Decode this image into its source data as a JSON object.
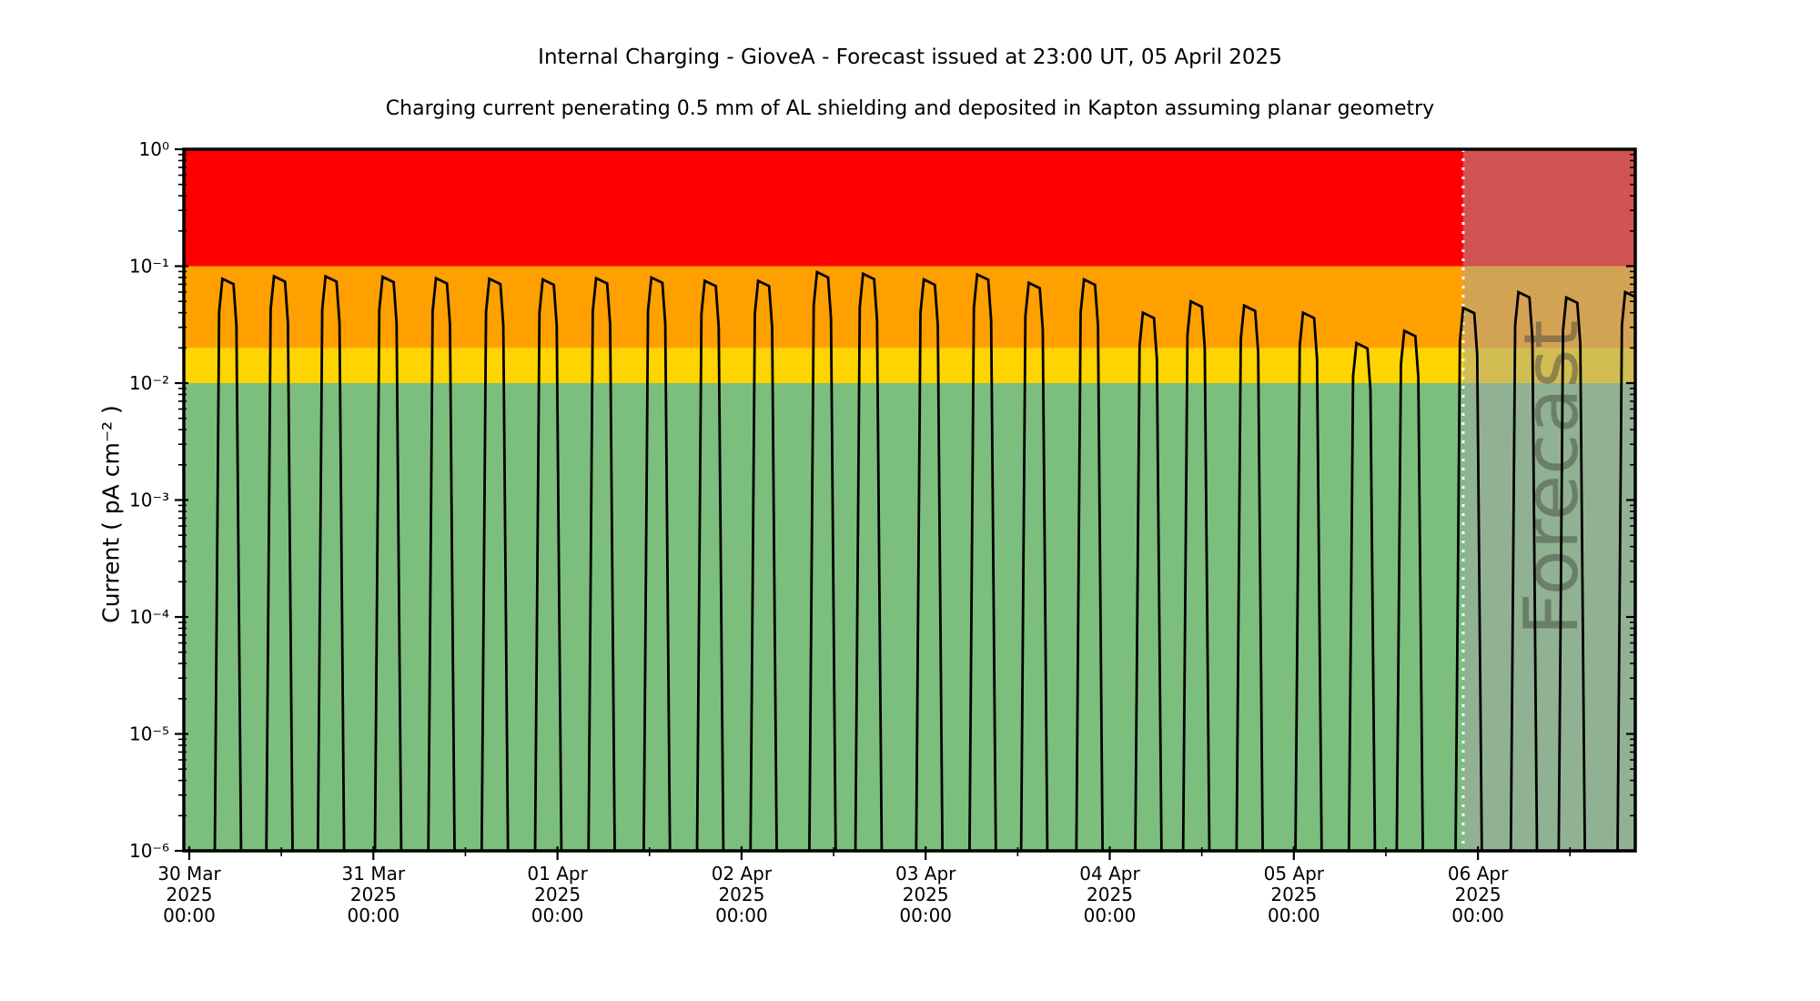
{
  "chart_data": {
    "type": "line",
    "title": "Internal Charging - GioveA - Forecast issued at 23:00 UT, 05 April 2025",
    "subtitle": "Charging current penerating 0.5 mm of AL shielding and deposited in Kapton assuming planar geometry",
    "ylabel": "Current ( pA cm⁻² )",
    "yscale": "log",
    "ylim": [
      1e-06,
      1
    ],
    "y_ticks": [
      {
        "value": 1,
        "label": "10⁰"
      },
      {
        "value": 0.1,
        "label": "10⁻¹"
      },
      {
        "value": 0.01,
        "label": "10⁻²"
      },
      {
        "value": 0.001,
        "label": "10⁻³"
      },
      {
        "value": 0.0001,
        "label": "10⁻⁴"
      },
      {
        "value": 1e-05,
        "label": "10⁻⁵"
      },
      {
        "value": 1e-06,
        "label": "10⁻⁶"
      }
    ],
    "x_unit": "days since 30 Mar 2025 00:00 UT",
    "xlim": [
      -0.03,
      7.855
    ],
    "x_minor_interval_days": 0.5,
    "x_ticks": [
      {
        "day": 0,
        "lines": [
          "30 Mar",
          "2025",
          "00:00"
        ]
      },
      {
        "day": 1,
        "lines": [
          "31 Mar",
          "2025",
          "00:00"
        ]
      },
      {
        "day": 2,
        "lines": [
          "01 Apr",
          "2025",
          "00:00"
        ]
      },
      {
        "day": 3,
        "lines": [
          "02 Apr",
          "2025",
          "00:00"
        ]
      },
      {
        "day": 4,
        "lines": [
          "03 Apr",
          "2025",
          "00:00"
        ]
      },
      {
        "day": 5,
        "lines": [
          "04 Apr",
          "2025",
          "00:00"
        ]
      },
      {
        "day": 6,
        "lines": [
          "05 Apr",
          "2025",
          "00:00"
        ]
      },
      {
        "day": 7,
        "lines": [
          "06 Apr",
          "2025",
          "00:00"
        ]
      }
    ],
    "thresholds": {
      "green_below": 0.01,
      "yellow_to": 0.02,
      "orange_to": 0.1,
      "red_to": 1
    },
    "bands": [
      {
        "name": "green",
        "range": [
          1e-06,
          0.01
        ],
        "color": "#7CBE7E"
      },
      {
        "name": "yellow",
        "range": [
          0.01,
          0.02
        ],
        "color": "#FFD400"
      },
      {
        "name": "orange",
        "range": [
          0.02,
          0.1
        ],
        "color": "#FFA000"
      },
      {
        "name": "red",
        "range": [
          0.1,
          1
        ],
        "color": "#FF0000"
      }
    ],
    "forecast": {
      "start_day": 6.92,
      "end_day": 7.855,
      "label": "Forecast",
      "overlay_color": "rgba(165,165,165,0.5)",
      "divider_color": "#FFFFFF",
      "divider_style": "dotted",
      "label_color": "#3f3f3f",
      "label_opacity": 0.45
    },
    "series": [
      {
        "name": "internal charging current",
        "color": "#000000",
        "spike_shape": {
          "half_base_days": 0.075,
          "half_top_days": 0.03,
          "rise_shoulder_frac": 0.52,
          "fall_shoulder_frac": 0.4,
          "off_scale_floor": 2e-07
        },
        "peaks": [
          [
            0.21,
            0.078
          ],
          [
            0.49,
            0.082
          ],
          [
            0.77,
            0.082
          ],
          [
            1.08,
            0.081
          ],
          [
            1.37,
            0.079
          ],
          [
            1.66,
            0.078
          ],
          [
            1.95,
            0.077
          ],
          [
            2.24,
            0.079
          ],
          [
            2.54,
            0.08
          ],
          [
            2.83,
            0.075
          ],
          [
            3.12,
            0.075
          ],
          [
            3.44,
            0.089
          ],
          [
            3.69,
            0.086
          ],
          [
            4.02,
            0.077
          ],
          [
            4.31,
            0.085
          ],
          [
            4.59,
            0.072
          ],
          [
            4.89,
            0.077
          ],
          [
            5.21,
            0.04
          ],
          [
            5.47,
            0.05
          ],
          [
            5.76,
            0.046
          ],
          [
            6.08,
            0.04
          ],
          [
            6.37,
            0.022
          ],
          [
            6.63,
            0.028
          ],
          [
            6.95,
            0.044
          ],
          [
            7.25,
            0.06
          ],
          [
            7.51,
            0.054
          ],
          [
            7.83,
            0.06
          ]
        ]
      }
    ]
  }
}
